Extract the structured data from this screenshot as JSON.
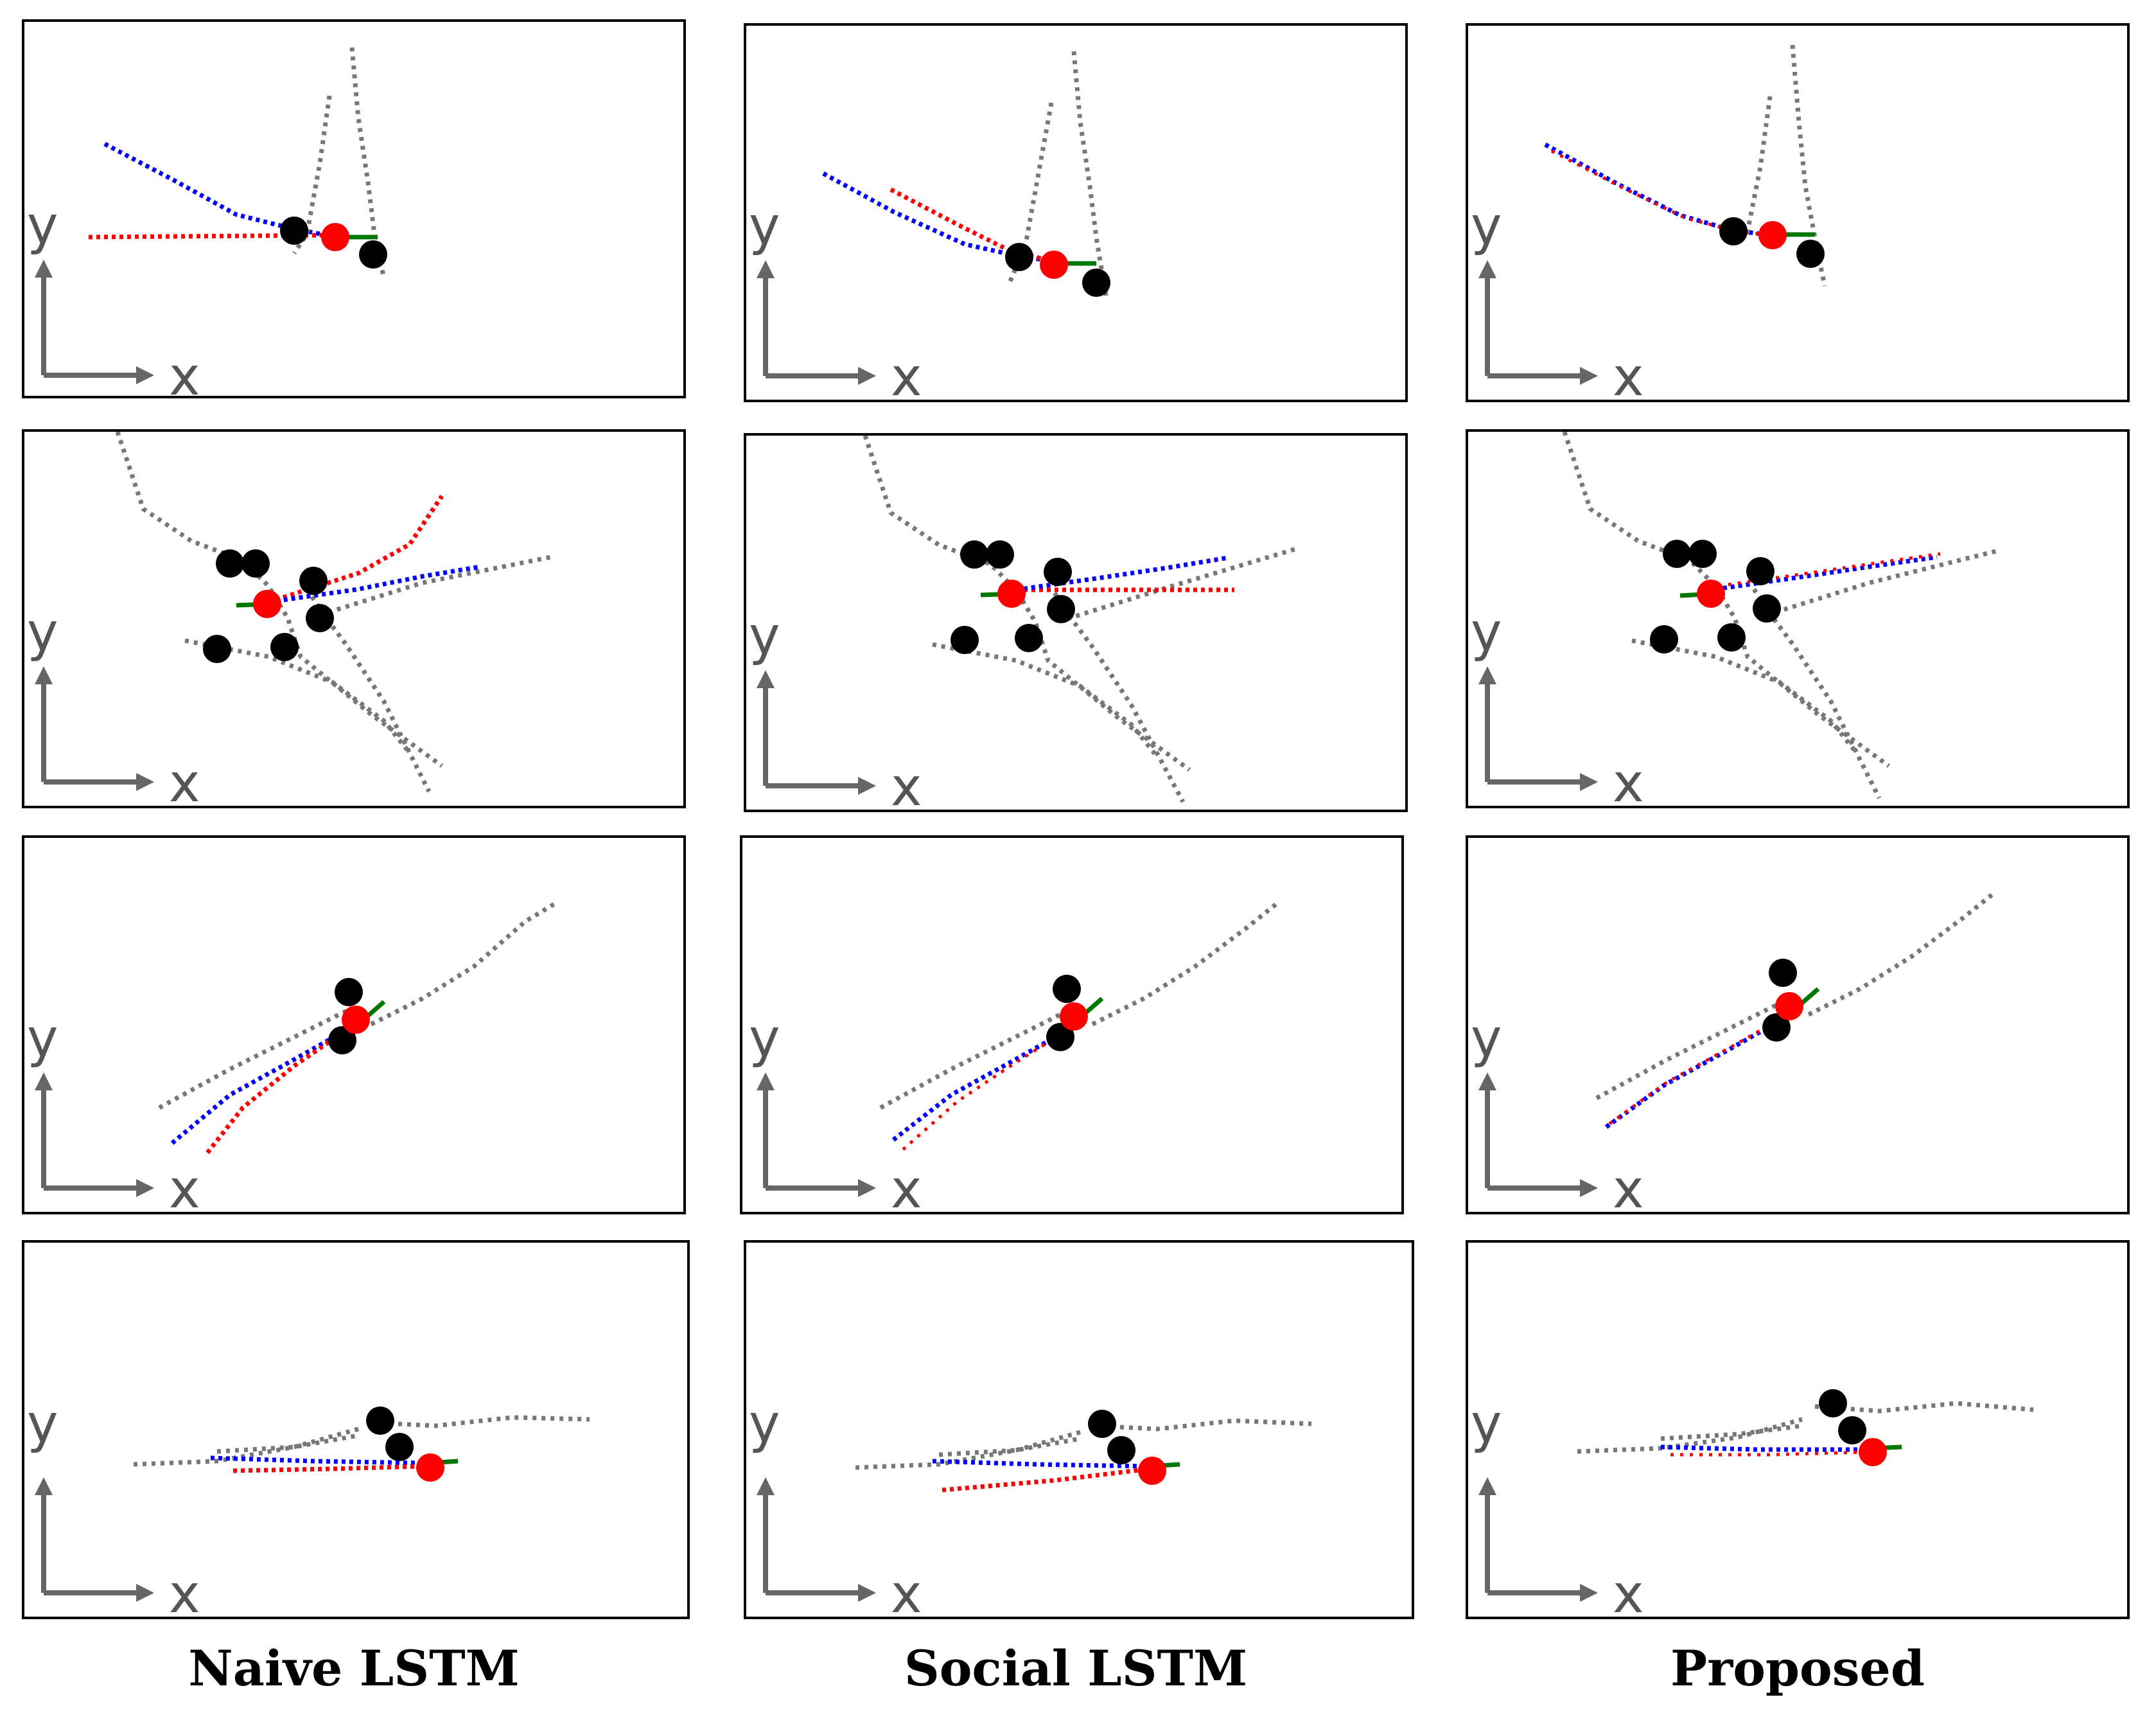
{
  "columns": [
    {
      "label": "Naive LSTM"
    },
    {
      "label": "Social LSTM"
    },
    {
      "label": "Proposed"
    }
  ],
  "axis": {
    "x_label": "x",
    "y_label": "y"
  },
  "legend_colors": {
    "ground_truth": "#0000ff",
    "prediction": "#ff0000",
    "neighbors": "#777777",
    "target": "#ff0000",
    "heading": "#007700"
  },
  "rows": 4,
  "panels_count": 12
}
